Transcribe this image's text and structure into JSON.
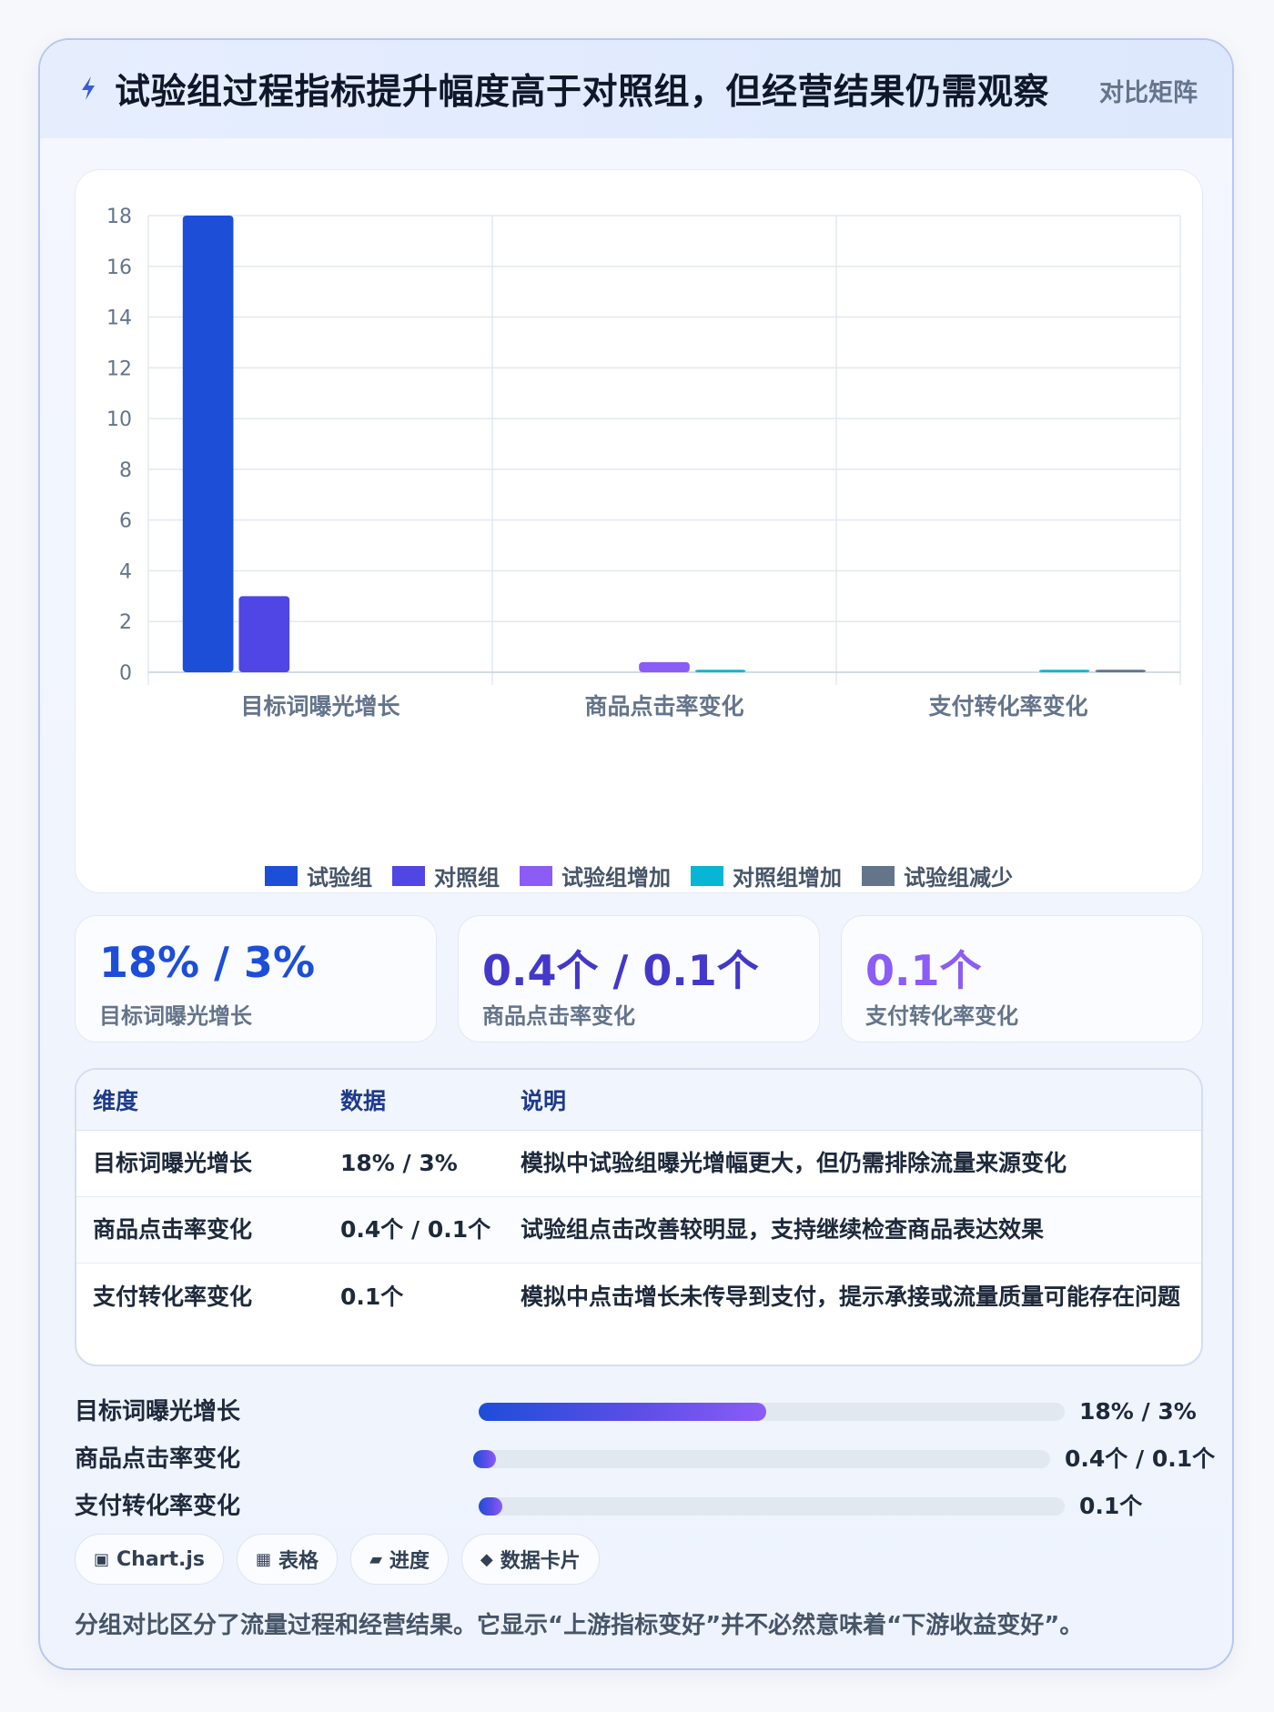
{
  "header": {
    "title": "试验组过程指标提升幅度高于对照组，但经营结果仍需观察",
    "tag": "对比矩阵",
    "icon": "lightning-icon"
  },
  "chart_data": {
    "type": "bar",
    "categories": [
      "目标词曝光增长",
      "商品点击率变化",
      "支付转化率变化"
    ],
    "series": [
      {
        "name": "试验组",
        "color": "#1d4ed8",
        "values": [
          18,
          0,
          0
        ]
      },
      {
        "name": "对照组",
        "color": "#4f46e5",
        "values": [
          3,
          0,
          0
        ]
      },
      {
        "name": "试验组增加",
        "color": "#8b5cf6",
        "values": [
          0,
          0.4,
          0
        ]
      },
      {
        "name": "对照组增加",
        "color": "#06b6d4",
        "values": [
          0,
          0.1,
          0.1
        ]
      },
      {
        "name": "试验组减少",
        "color": "#64748b",
        "values": [
          0,
          0,
          0.1
        ]
      }
    ],
    "ylim": [
      0,
      18
    ],
    "yticks": [
      0,
      2,
      4,
      6,
      8,
      10,
      12,
      14,
      16,
      18
    ],
    "grid": true,
    "legend": "bottom"
  },
  "stats": [
    {
      "value": "18% / 3%",
      "label": "目标词曝光增长",
      "color": "#1d4ed8"
    },
    {
      "value": "0.4个 / 0.1个",
      "label": "商品点击率变化",
      "color": "#4338ca"
    },
    {
      "value": "0.1个",
      "label": "支付转化率变化",
      "color": "#8b5cf6"
    }
  ],
  "table": {
    "headers": [
      "维度",
      "数据",
      "说明"
    ],
    "rows": [
      [
        "目标词曝光增长",
        "18% / 3%",
        "模拟中试验组曝光增幅更大，但仍需排除流量来源变化"
      ],
      [
        "商品点击率变化",
        "0.4个 / 0.1个",
        "试验组点击改善较明显，支持继续检查商品表达效果"
      ],
      [
        "支付转化率变化",
        "0.1个",
        "模拟中点击增长未传导到支付，提示承接或流量质量可能存在问题"
      ]
    ]
  },
  "progress": [
    {
      "label": "目标词曝光增长",
      "value": "18% / 3%",
      "fraction": 0.49
    },
    {
      "label": "商品点击率变化",
      "value": "0.4个 / 0.1个",
      "fraction": 0.04
    },
    {
      "label": "支付转化率变化",
      "value": "0.1个",
      "fraction": 0.04
    }
  ],
  "chips": [
    {
      "icon": "chart-icon",
      "glyph": "▣",
      "label": "Chart.js"
    },
    {
      "icon": "table-icon",
      "glyph": "▦",
      "label": "表格"
    },
    {
      "icon": "progress-icon",
      "glyph": "▰",
      "label": "进度"
    },
    {
      "icon": "card-icon",
      "glyph": "◆",
      "label": "数据卡片"
    }
  ],
  "footnote": "分组对比区分了流量过程和经营结果。它显示“上游指标变好”并不必然意味着“下游收益变好”。"
}
